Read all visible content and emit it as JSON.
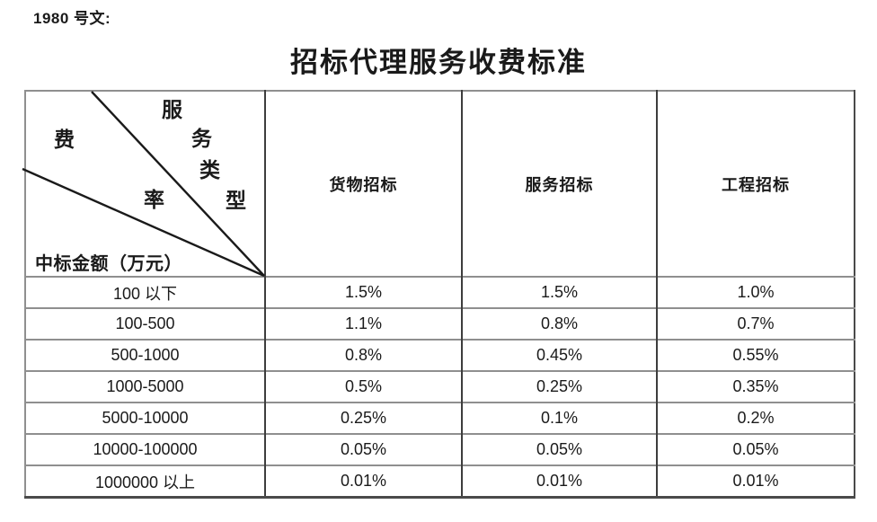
{
  "doc_ref": "1980 号文:",
  "title": "招标代理服务收费标准",
  "table": {
    "corner": {
      "service_type_chars": [
        "服",
        "务",
        "类",
        "型"
      ],
      "rate_chars": [
        "费",
        "率"
      ],
      "amount_label": "中标金额（万元）"
    },
    "columns": [
      "货物招标",
      "服务招标",
      "工程招标"
    ],
    "rows": [
      {
        "range": "100 以下",
        "values": [
          "1.5%",
          "1.5%",
          "1.0%"
        ]
      },
      {
        "range": "100-500",
        "values": [
          "1.1%",
          "0.8%",
          "0.7%"
        ]
      },
      {
        "range": "500-1000",
        "values": [
          "0.8%",
          "0.45%",
          "0.55%"
        ]
      },
      {
        "range": "1000-5000",
        "values": [
          "0.5%",
          "0.25%",
          "0.35%"
        ]
      },
      {
        "range": "5000-10000",
        "values": [
          "0.25%",
          "0.1%",
          "0.2%"
        ]
      },
      {
        "range": "10000-100000",
        "values": [
          "0.05%",
          "0.05%",
          "0.05%"
        ]
      },
      {
        "range": "1000000 以上",
        "values": [
          "0.01%",
          "0.01%",
          "0.01%"
        ]
      }
    ]
  },
  "colors": {
    "text": "#1a1a1a",
    "grid_horizontal": "#8f8f8f",
    "grid_vertical": "#3d3d3d",
    "outer_border_dark": "#4a4a4a"
  }
}
